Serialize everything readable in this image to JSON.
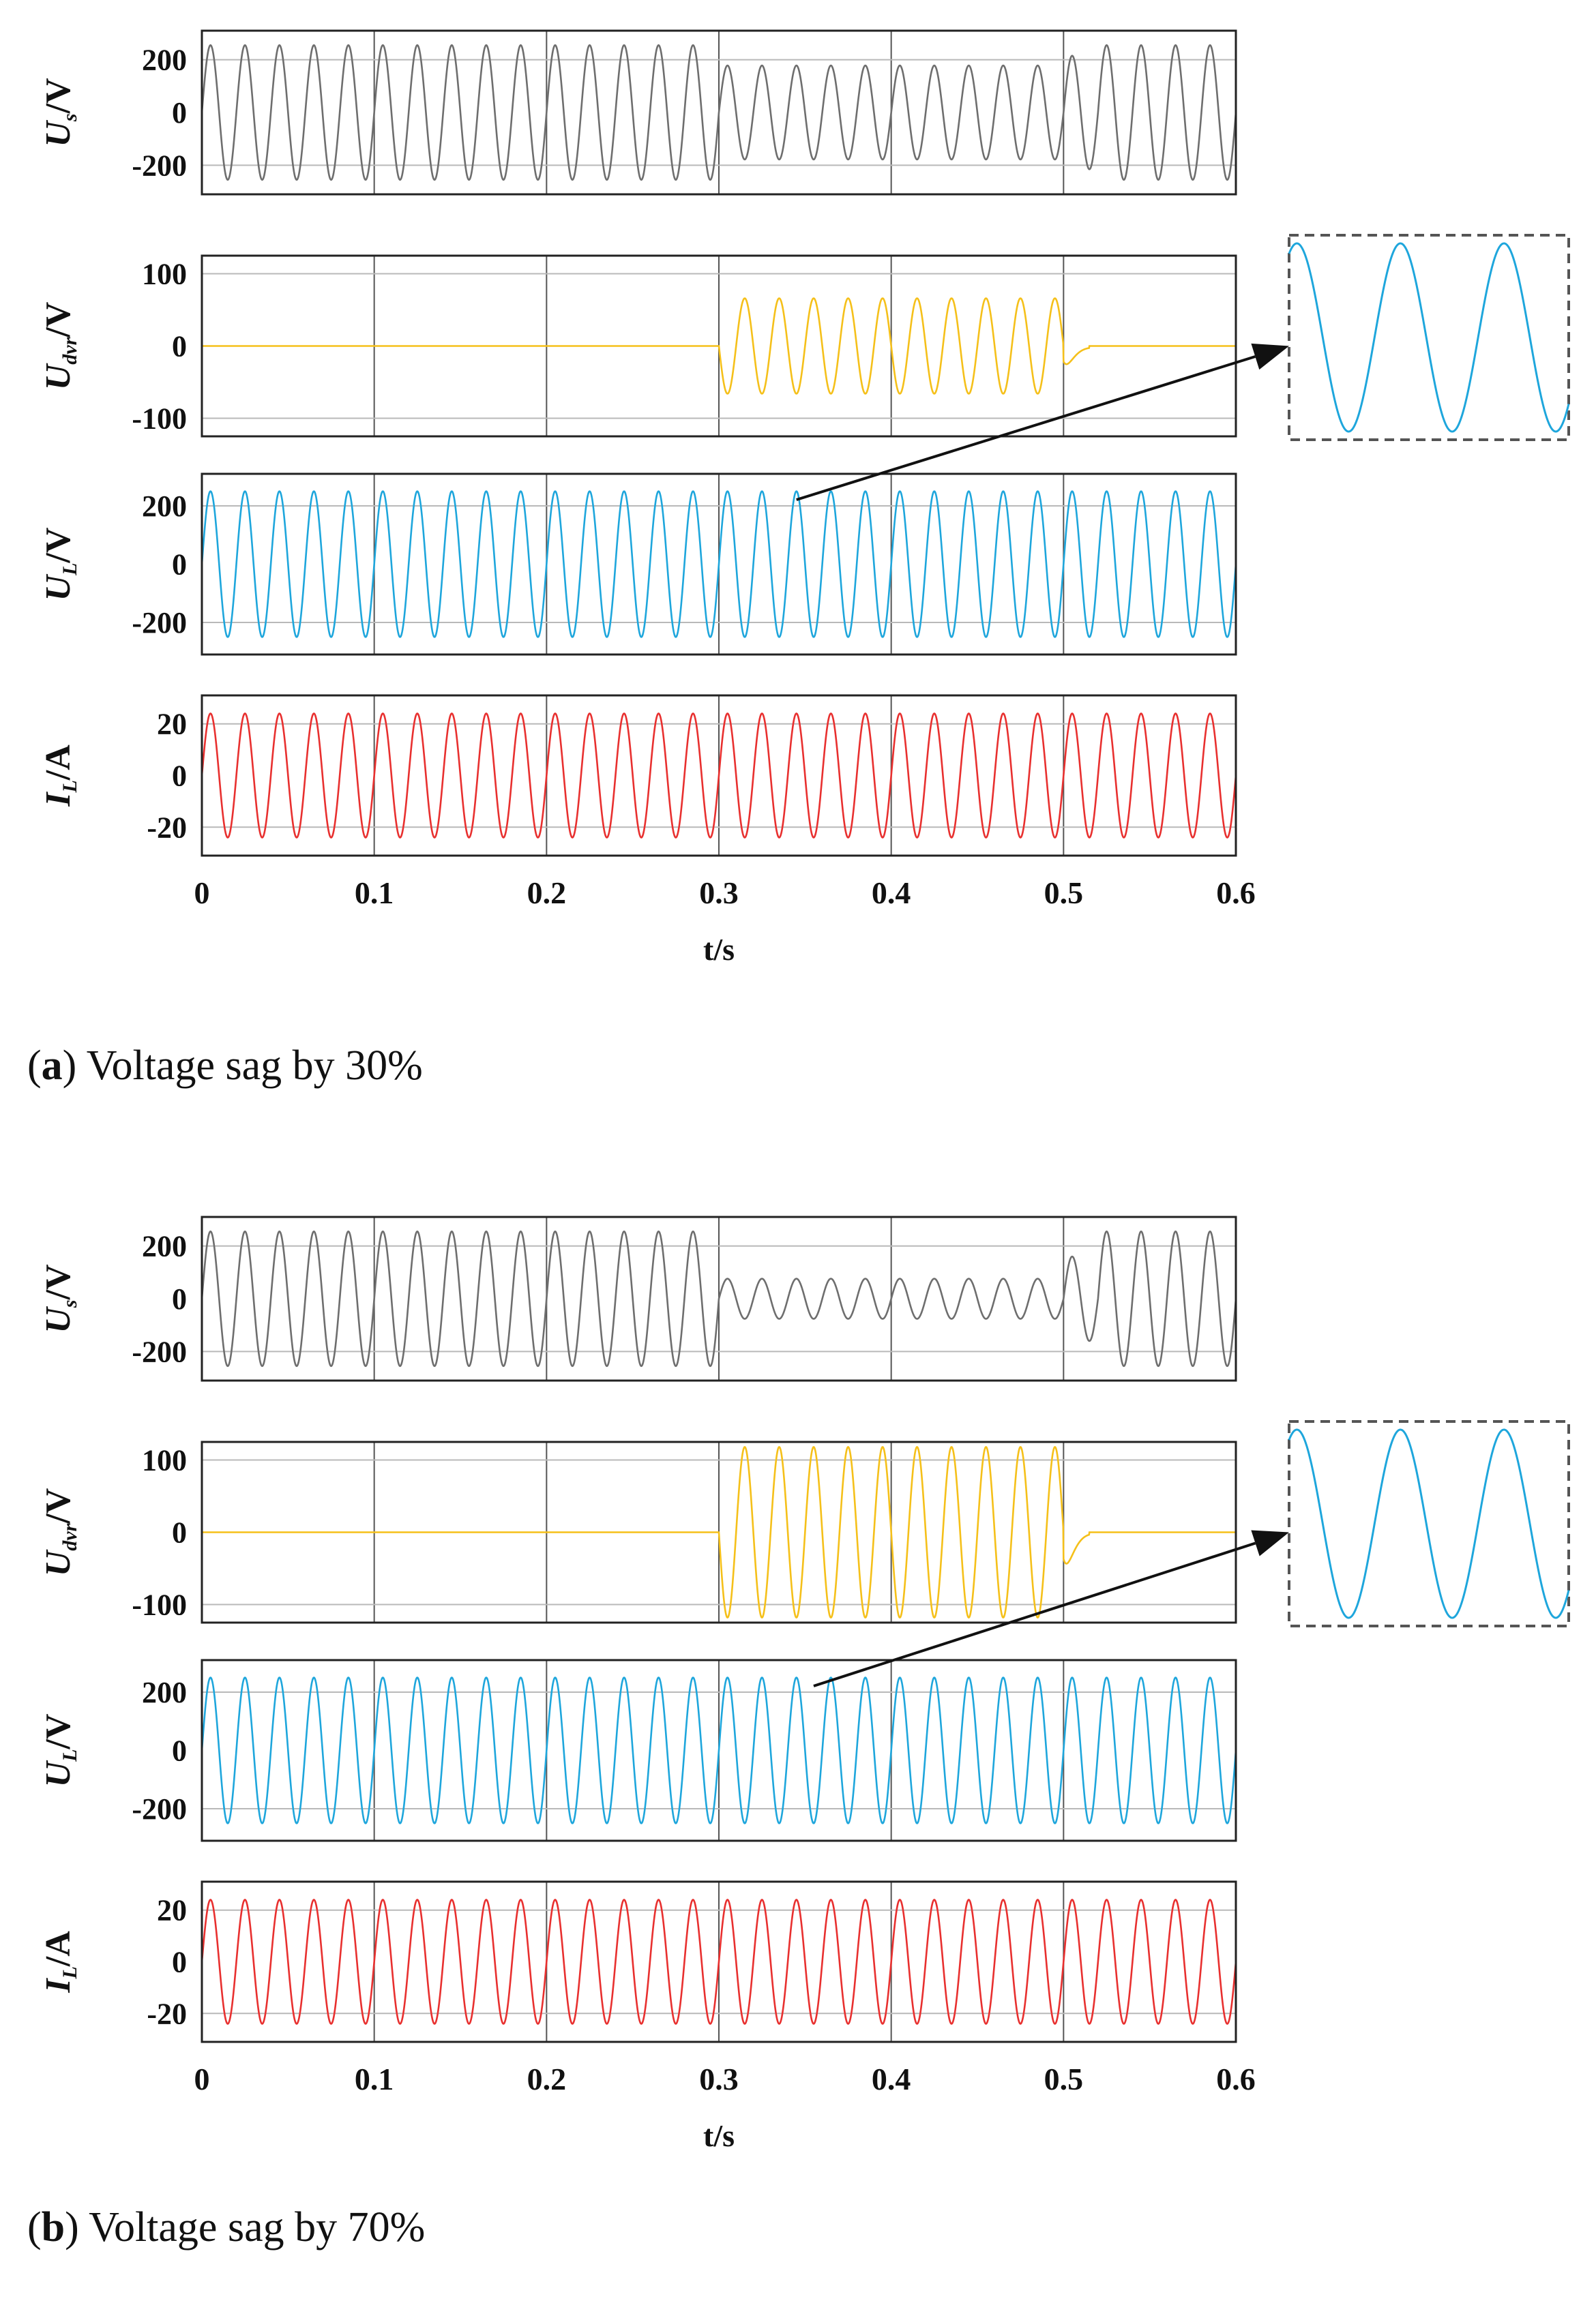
{
  "figure": {
    "captions": [
      {
        "letter": "a",
        "text": "Voltage sag by 30%"
      },
      {
        "letter": "b",
        "text": "Voltage sag by 70%"
      }
    ]
  },
  "chart_data": [
    {
      "type": "line",
      "id": "a",
      "caption": "(a) Voltage sag by 30%",
      "xlabel": "t/s",
      "xlim": [
        0,
        0.6
      ],
      "xticks": [
        "0",
        "0.1",
        "0.2",
        "0.3",
        "0.4",
        "0.5",
        "0.6"
      ],
      "frequency_hz": 50,
      "sag_interval_s": [
        0.3,
        0.5
      ],
      "panels": [
        {
          "ylabel_main": "U",
          "ylabel_sub": "s",
          "ylabel_unit": "/V",
          "color": "#6e6e6e",
          "ylim": [
            -310,
            310
          ],
          "yticks": [
            200,
            0,
            -200
          ],
          "ytick_labels": [
            "200",
            "0",
            "-200"
          ],
          "series": {
            "name": "Us",
            "amplitude_normal": 255,
            "amplitude_sag": 178,
            "amplitude_after_first_cycle": 215
          }
        },
        {
          "ylabel_main": "U",
          "ylabel_sub": "dvr",
          "ylabel_unit": "/V",
          "color": "#f5c01a",
          "ylim": [
            -125,
            125
          ],
          "yticks": [
            100,
            0,
            -100
          ],
          "ytick_labels": [
            "100",
            "0",
            "-100"
          ],
          "series": {
            "name": "Udvr",
            "amplitude_normal": 0,
            "amplitude_sag": 66,
            "decay_after_s": 0.5
          }
        },
        {
          "ylabel_main": "U",
          "ylabel_sub": "L",
          "ylabel_unit": "/V",
          "color": "#1ea6dc",
          "ylim": [
            -310,
            310
          ],
          "yticks": [
            200,
            0,
            -200
          ],
          "ytick_labels": [
            "200",
            "0",
            "-200"
          ],
          "series": {
            "name": "UL",
            "amplitude": 250
          }
        },
        {
          "ylabel_main": "I",
          "ylabel_sub": "L",
          "ylabel_unit": "/A",
          "color": "#e8302f",
          "ylim": [
            -31,
            31
          ],
          "yticks": [
            20,
            0,
            -20
          ],
          "ytick_labels": [
            "20",
            "0",
            "-20"
          ],
          "series": {
            "name": "IL",
            "amplitude": 24
          }
        }
      ],
      "zoom_inset": {
        "source_panel": "UL",
        "source_t": 0.345,
        "color": "#1ea6dc",
        "cycles": 2.7
      }
    },
    {
      "type": "line",
      "id": "b",
      "caption": "(b) Voltage sag by 70%",
      "xlabel": "t/s",
      "xlim": [
        0,
        0.6
      ],
      "xticks": [
        "0",
        "0.1",
        "0.2",
        "0.3",
        "0.4",
        "0.5",
        "0.6"
      ],
      "frequency_hz": 50,
      "sag_interval_s": [
        0.3,
        0.5
      ],
      "panels": [
        {
          "ylabel_main": "U",
          "ylabel_sub": "s",
          "ylabel_unit": "/V",
          "color": "#6e6e6e",
          "ylim": [
            -310,
            310
          ],
          "yticks": [
            200,
            0,
            -200
          ],
          "ytick_labels": [
            "200",
            "0",
            "-200"
          ],
          "series": {
            "name": "Us",
            "amplitude_normal": 255,
            "amplitude_sag": 76,
            "amplitude_after_first_cycle": 160
          }
        },
        {
          "ylabel_main": "U",
          "ylabel_sub": "dvr",
          "ylabel_unit": "/V",
          "color": "#f5c01a",
          "ylim": [
            -125,
            125
          ],
          "yticks": [
            100,
            0,
            -100
          ],
          "ytick_labels": [
            "100",
            "0",
            "-100"
          ],
          "series": {
            "name": "Udvr",
            "amplitude_normal": 0,
            "amplitude_sag": 118,
            "decay_after_s": 0.5
          }
        },
        {
          "ylabel_main": "U",
          "ylabel_sub": "L",
          "ylabel_unit": "/V",
          "color": "#1ea6dc",
          "ylim": [
            -310,
            310
          ],
          "yticks": [
            200,
            0,
            -200
          ],
          "ytick_labels": [
            "200",
            "0",
            "-200"
          ],
          "series": {
            "name": "UL",
            "amplitude": 250
          }
        },
        {
          "ylabel_main": "I",
          "ylabel_sub": "L",
          "ylabel_unit": "/A",
          "color": "#e8302f",
          "ylim": [
            -31,
            31
          ],
          "yticks": [
            20,
            0,
            -20
          ],
          "ytick_labels": [
            "20",
            "0",
            "-20"
          ],
          "series": {
            "name": "IL",
            "amplitude": 24
          }
        }
      ],
      "zoom_inset": {
        "source_panel": "UL",
        "source_t": 0.355,
        "color": "#1ea6dc",
        "cycles": 2.7
      }
    }
  ]
}
